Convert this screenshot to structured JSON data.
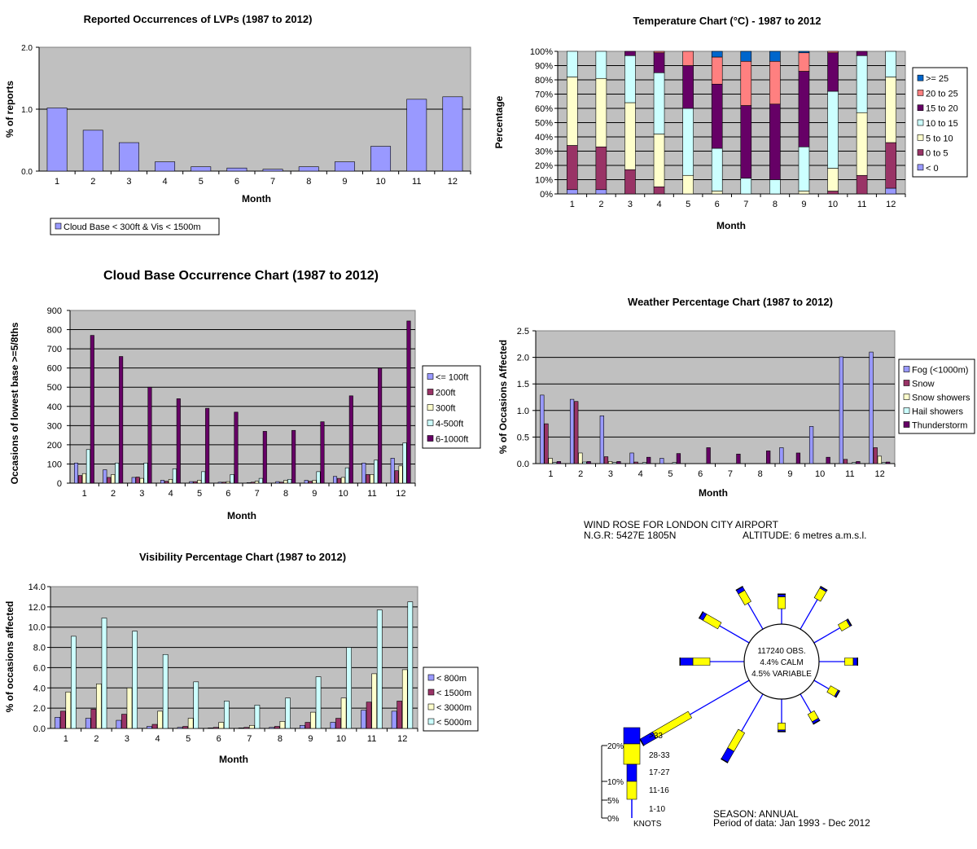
{
  "chart_data": [
    {
      "id": "lvp",
      "type": "bar",
      "title": "Reported Occurrences of LVPs (1987 to 2012)",
      "xlabel": "Month",
      "ylabel": "% of reports",
      "ylim": [
        0,
        2
      ],
      "yticks": [
        "0.0",
        "1.0",
        "2.0"
      ],
      "categories": [
        "1",
        "2",
        "3",
        "4",
        "5",
        "6",
        "7",
        "8",
        "9",
        "10",
        "11",
        "12"
      ],
      "series": [
        {
          "name": "Cloud Base < 300ft & Vis < 1500m",
          "color": "#9999ff",
          "values": [
            1.02,
            0.66,
            0.46,
            0.15,
            0.07,
            0.05,
            0.03,
            0.07,
            0.15,
            0.4,
            1.16,
            1.2
          ]
        }
      ],
      "grid": true,
      "legend": "bottom-left"
    },
    {
      "id": "temperature",
      "type": "bar",
      "stacked": true,
      "title": "Temperature Chart (°C) - 1987 to 2012",
      "xlabel": "Month",
      "ylabel": "Percentage",
      "ylim": [
        0,
        100
      ],
      "yticks": [
        "0%",
        "10%",
        "20%",
        "30%",
        "40%",
        "50%",
        "60%",
        "70%",
        "80%",
        "90%",
        "100%"
      ],
      "categories": [
        "1",
        "2",
        "3",
        "4",
        "5",
        "6",
        "7",
        "8",
        "9",
        "10",
        "11",
        "12"
      ],
      "series": [
        {
          "name": "< 0",
          "color": "#9999ff",
          "values": [
            3,
            3,
            0,
            0,
            0,
            0,
            0,
            0,
            0,
            0,
            0,
            4
          ]
        },
        {
          "name": "0 to 5",
          "color": "#993366",
          "values": [
            31,
            30,
            17,
            5,
            0,
            0,
            0,
            0,
            0,
            2,
            13,
            32
          ]
        },
        {
          "name": "5 to 10",
          "color": "#ffffcc",
          "values": [
            48,
            48,
            47,
            37,
            13,
            2,
            0,
            0,
            2,
            16,
            44,
            46
          ]
        },
        {
          "name": "10 to 15",
          "color": "#ccffff",
          "values": [
            18,
            19,
            33,
            43,
            47,
            30,
            11,
            10,
            31,
            54,
            40,
            18
          ]
        },
        {
          "name": "15 to 20",
          "color": "#660066",
          "values": [
            0,
            0,
            3,
            14,
            30,
            45,
            51,
            53,
            53,
            27,
            3,
            0
          ]
        },
        {
          "name": "20 to 25",
          "color": "#ff8080",
          "values": [
            0,
            0,
            0,
            1,
            10,
            19,
            31,
            30,
            13,
            1,
            0,
            0
          ]
        },
        {
          "name": ">= 25",
          "color": "#0066cc",
          "values": [
            0,
            0,
            0,
            0,
            0,
            4,
            7,
            7,
            1,
            0,
            0,
            0
          ]
        }
      ],
      "grid": true,
      "legend": "right"
    },
    {
      "id": "cloudbase",
      "type": "bar",
      "title": "Cloud Base Occurrence Chart (1987 to 2012)",
      "xlabel": "Month",
      "ylabel": "Occasions of lowest base >=5/8ths",
      "ylim": [
        0,
        900
      ],
      "yticks": [
        "0",
        "100",
        "200",
        "300",
        "400",
        "500",
        "600",
        "700",
        "800",
        "900"
      ],
      "categories": [
        "1",
        "2",
        "3",
        "4",
        "5",
        "6",
        "7",
        "8",
        "9",
        "10",
        "11",
        "12"
      ],
      "series": [
        {
          "name": "<= 100ft",
          "color": "#9999ff",
          "values": [
            105,
            70,
            30,
            15,
            8,
            5,
            3,
            8,
            15,
            35,
            105,
            130
          ]
        },
        {
          "name": "200ft",
          "color": "#993366",
          "values": [
            40,
            30,
            32,
            10,
            8,
            5,
            5,
            5,
            10,
            25,
            45,
            65
          ]
        },
        {
          "name": "300ft",
          "color": "#ffffcc",
          "values": [
            50,
            45,
            25,
            20,
            15,
            8,
            10,
            15,
            15,
            30,
            45,
            90
          ]
        },
        {
          "name": "4-500ft",
          "color": "#ccffff",
          "values": [
            175,
            105,
            105,
            75,
            60,
            45,
            25,
            20,
            60,
            80,
            120,
            210
          ]
        },
        {
          "name": "6-1000ft",
          "color": "#660066",
          "values": [
            770,
            660,
            500,
            440,
            390,
            370,
            270,
            275,
            320,
            455,
            600,
            845
          ]
        }
      ],
      "grid": true,
      "legend": "right"
    },
    {
      "id": "weather",
      "type": "bar",
      "title": "Weather Percentage Chart (1987 to 2012)",
      "xlabel": "Month",
      "ylabel": "% of Occasions Affected",
      "ylim": [
        0,
        2.5
      ],
      "yticks": [
        "0.0",
        "0.5",
        "1.0",
        "1.5",
        "2.0",
        "2.5"
      ],
      "categories": [
        "1",
        "2",
        "3",
        "4",
        "5",
        "6",
        "7",
        "8",
        "9",
        "10",
        "11",
        "12"
      ],
      "series": [
        {
          "name": "Fog (<1000m)",
          "color": "#9999ff",
          "values": [
            1.29,
            1.21,
            0.9,
            0.2,
            0.1,
            0,
            0,
            0,
            0.3,
            0.7,
            2.01,
            2.1
          ]
        },
        {
          "name": "Snow",
          "color": "#993366",
          "values": [
            0.75,
            1.17,
            0.13,
            0.03,
            0,
            0,
            0,
            0,
            0,
            0,
            0.08,
            0.3
          ]
        },
        {
          "name": "Snow showers",
          "color": "#ffffcc",
          "values": [
            0.1,
            0.2,
            0.04,
            0,
            0,
            0,
            0,
            0,
            0,
            0,
            0,
            0.14
          ]
        },
        {
          "name": "Hail showers",
          "color": "#ccffff",
          "values": [
            0.02,
            0.03,
            0.02,
            0.02,
            0.02,
            0,
            0,
            0,
            0,
            0,
            0.02,
            0.02
          ]
        },
        {
          "name": "Thunderstorm",
          "color": "#660066",
          "values": [
            0.04,
            0.04,
            0.04,
            0.12,
            0.19,
            0.3,
            0.18,
            0.24,
            0.2,
            0.12,
            0.04,
            0.03
          ]
        }
      ],
      "grid": true,
      "legend": "right"
    },
    {
      "id": "visibility",
      "type": "bar",
      "title": "Visibility Percentage Chart (1987 to 2012)",
      "xlabel": "Month",
      "ylabel": "% of occasions affected",
      "ylim": [
        0,
        14
      ],
      "yticks": [
        "0.0",
        "2.0",
        "4.0",
        "6.0",
        "8.0",
        "10.0",
        "12.0",
        "14.0"
      ],
      "categories": [
        "1",
        "2",
        "3",
        "4",
        "5",
        "6",
        "7",
        "8",
        "9",
        "10",
        "11",
        "12"
      ],
      "series": [
        {
          "name": "< 800m",
          "color": "#9999ff",
          "values": [
            1.1,
            1.0,
            0.8,
            0.2,
            0.1,
            0.05,
            0.05,
            0.1,
            0.3,
            0.6,
            1.8,
            1.7
          ]
        },
        {
          "name": "< 1500m",
          "color": "#993366",
          "values": [
            1.7,
            1.9,
            1.4,
            0.4,
            0.2,
            0.1,
            0.1,
            0.2,
            0.6,
            1.0,
            2.6,
            2.7
          ]
        },
        {
          "name": "< 3000m",
          "color": "#ffffcc",
          "values": [
            3.6,
            4.4,
            4.0,
            1.7,
            1.0,
            0.6,
            0.3,
            0.7,
            1.6,
            3.0,
            5.4,
            5.8
          ]
        },
        {
          "name": "< 5000m",
          "color": "#ccffff",
          "values": [
            9.1,
            10.9,
            9.6,
            7.3,
            4.6,
            2.7,
            2.3,
            3.0,
            5.1,
            8.0,
            11.7,
            12.5
          ]
        }
      ],
      "grid": true,
      "legend": "right"
    }
  ],
  "windrose": {
    "title": "WIND ROSE FOR  LONDON CITY AIRPORT",
    "ngr": "N.G.R: 5427E 1805N",
    "altitude": "ALTITUDE:  6 metres a.m.s.l.",
    "center": [
      "117240 OBS.",
      "4.4% CALM",
      "4.5% VARIABLE"
    ],
    "season": "SEASON:  ANNUAL",
    "period": "Period of data: Jan 1993 - Dec 2012",
    "speed_unit": "KNOTS",
    "speed_bands": [
      ">33",
      "28-33",
      "17-27",
      "11-16",
      "1-10"
    ],
    "scale_labels": [
      "20%",
      "10%",
      "5%",
      "0%"
    ],
    "colors": {
      "blue": "#0000ff",
      "yellow": "#ffff00"
    },
    "spokes": [
      {
        "bearing": 0,
        "pct": 3.5,
        "yellow": [
          1.8,
          3.2
        ]
      },
      {
        "bearing": 30,
        "pct": 5.5,
        "yellow": [
          4.0,
          5.3
        ]
      },
      {
        "bearing": 60,
        "pct": 4.8,
        "yellow": [
          3.5,
          4.6
        ]
      },
      {
        "bearing": 90,
        "pct": 4.5,
        "yellow": [
          3.0,
          4.0
        ]
      },
      {
        "bearing": 120,
        "pct": 3.2,
        "yellow": [
          2.0,
          3.0
        ]
      },
      {
        "bearing": 150,
        "pct": 3.8,
        "yellow": [
          2.5,
          3.5
        ]
      },
      {
        "bearing": 180,
        "pct": 3.8,
        "yellow": [
          2.8,
          3.6
        ]
      },
      {
        "bearing": 210,
        "pct": 9.0,
        "yellow": [
          5.0,
          7.5
        ]
      },
      {
        "bearing": 240,
        "pct": 14.5,
        "yellow": [
          8.0,
          12.8
        ]
      },
      {
        "bearing": 270,
        "pct": 7.5,
        "yellow": [
          4.0,
          6.0
        ]
      },
      {
        "bearing": 300,
        "pct": 6.5,
        "yellow": [
          4.0,
          6.0
        ]
      },
      {
        "bearing": 330,
        "pct": 5.5,
        "yellow": [
          3.5,
          5.0
        ]
      }
    ]
  }
}
